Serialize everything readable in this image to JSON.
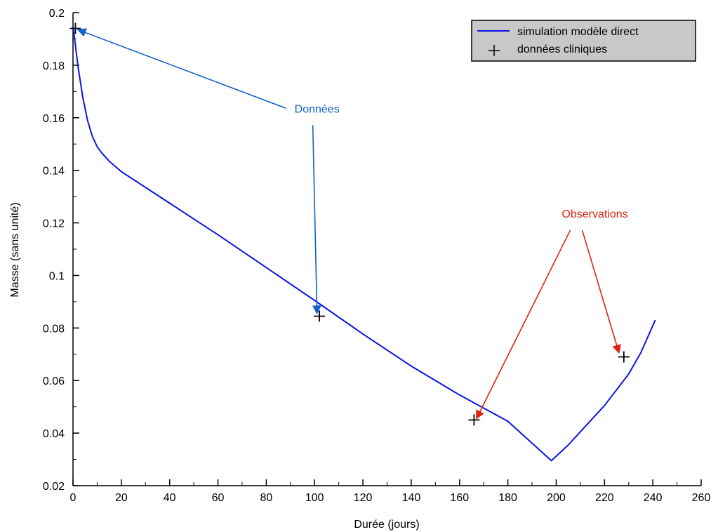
{
  "chart_data": {
    "type": "line",
    "xlabel": "Durée (jours)",
    "ylabel": "Masse (sans unité)",
    "xlim": [
      0,
      260
    ],
    "ylim": [
      0.02,
      0.2
    ],
    "x_ticks": [
      0,
      20,
      40,
      60,
      80,
      100,
      120,
      140,
      160,
      180,
      200,
      220,
      240,
      260
    ],
    "x_tick_labels": [
      "0",
      "20",
      "40",
      "60",
      "80",
      "100",
      "120",
      "140",
      "160",
      "180",
      "200",
      "220",
      "240",
      "260"
    ],
    "y_ticks": [
      0.02,
      0.04,
      0.06,
      0.08,
      0.1,
      0.12,
      0.14,
      0.16,
      0.18,
      0.2
    ],
    "y_tick_labels": [
      "0.02",
      "0.04",
      "0.06",
      "0.08",
      "0.1",
      "0.12",
      "0.14",
      "0.16",
      "0.18",
      "0.2"
    ],
    "grid": false,
    "legend_position": "top-right",
    "series": [
      {
        "name": "simulation modèle direct",
        "kind": "line",
        "color": "#0a14e6",
        "x": [
          0,
          2,
          4,
          6,
          8,
          10,
          12,
          15,
          20,
          30,
          40,
          60,
          80,
          100,
          120,
          140,
          160,
          180,
          198,
          205,
          210,
          220,
          230,
          235,
          241
        ],
        "y": [
          0.195,
          0.18,
          0.168,
          0.159,
          0.153,
          0.149,
          0.1465,
          0.1435,
          0.1395,
          0.1335,
          0.1275,
          0.1155,
          0.103,
          0.0905,
          0.0777,
          0.0655,
          0.0545,
          0.0445,
          0.0295,
          0.0355,
          0.0405,
          0.0505,
          0.0625,
          0.0705,
          0.083
        ]
      },
      {
        "name": "données cliniques",
        "kind": "marker",
        "marker": "+",
        "color": "#000000",
        "x": [
          1,
          102,
          166,
          228
        ],
        "y": [
          0.194,
          0.0845,
          0.045,
          0.069
        ]
      }
    ],
    "annotations": [
      {
        "text": "Données",
        "color": "#1060c8",
        "x": 101,
        "y": 0.162,
        "arrows_to": [
          [
            2,
            0.1935
          ],
          [
            101,
            0.0855
          ]
        ]
      },
      {
        "text": "Observations",
        "color": "#e02010",
        "x": 216,
        "y": 0.122,
        "arrows_to": [
          [
            167,
            0.0455
          ],
          [
            226,
            0.0705
          ]
        ]
      }
    ]
  }
}
